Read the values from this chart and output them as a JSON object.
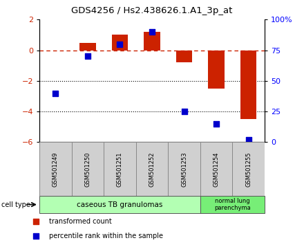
{
  "title": "GDS4256 / Hs2.438626.1.A1_3p_at",
  "samples": [
    "GSM501249",
    "GSM501250",
    "GSM501251",
    "GSM501252",
    "GSM501253",
    "GSM501254",
    "GSM501255"
  ],
  "red_bars": [
    0.0,
    0.5,
    1.0,
    1.2,
    -0.8,
    -2.5,
    -4.5
  ],
  "blue_dots": [
    40,
    70,
    80,
    90,
    25,
    15,
    2
  ],
  "ylim_left": [
    -6,
    2
  ],
  "ylim_right": [
    0,
    100
  ],
  "left_yticks": [
    -6,
    -4,
    -2,
    0,
    2
  ],
  "right_yticks": [
    0,
    25,
    50,
    75,
    100
  ],
  "right_yticklabels": [
    "0",
    "25",
    "50",
    "75",
    "100%"
  ],
  "hline_value": 0,
  "dotted_lines": [
    -2,
    -4
  ],
  "group1_label": "caseous TB granulomas",
  "group1_color": "#b3ffb3",
  "group2_label": "normal lung\nparenchyma",
  "group2_color": "#77ee77",
  "bar_color": "#cc2200",
  "dot_color": "#0000cc",
  "dashed_color": "#cc2200",
  "left_tick_color": "#cc2200",
  "legend_red_label": "transformed count",
  "legend_blue_label": "percentile rank within the sample",
  "bar_width": 0.5,
  "dot_size": 40
}
